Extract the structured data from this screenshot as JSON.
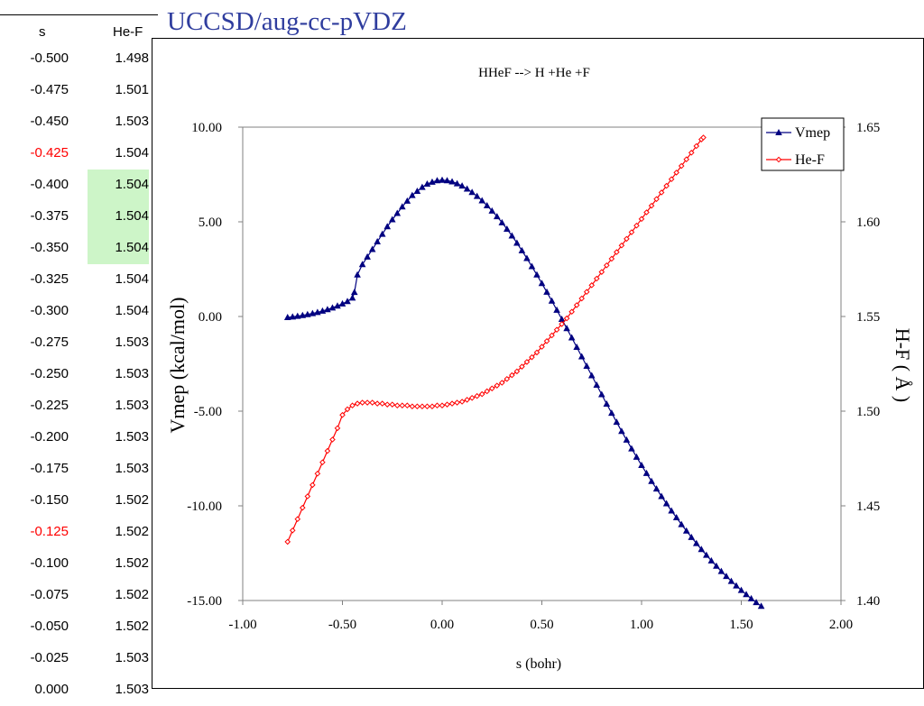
{
  "slide_title": "UCCSD/aug-cc-pVDZ",
  "table": {
    "headers": [
      "s",
      "He-F"
    ],
    "rows": [
      {
        "s": "-0.500",
        "v": "1.498",
        "s_color": "#000000",
        "highlight": false
      },
      {
        "s": "-0.475",
        "v": "1.501",
        "s_color": "#000000",
        "highlight": false
      },
      {
        "s": "-0.450",
        "v": "1.503",
        "s_color": "#000000",
        "highlight": false
      },
      {
        "s": "-0.425",
        "v": "1.504",
        "s_color": "#ff0000",
        "highlight": false
      },
      {
        "s": "-0.400",
        "v": "1.504",
        "s_color": "#000000",
        "highlight": true
      },
      {
        "s": "-0.375",
        "v": "1.504",
        "s_color": "#000000",
        "highlight": true
      },
      {
        "s": "-0.350",
        "v": "1.504",
        "s_color": "#000000",
        "highlight": true
      },
      {
        "s": "-0.325",
        "v": "1.504",
        "s_color": "#000000",
        "highlight": false
      },
      {
        "s": "-0.300",
        "v": "1.504",
        "s_color": "#000000",
        "highlight": false
      },
      {
        "s": "-0.275",
        "v": "1.503",
        "s_color": "#000000",
        "highlight": false
      },
      {
        "s": "-0.250",
        "v": "1.503",
        "s_color": "#000000",
        "highlight": false
      },
      {
        "s": "-0.225",
        "v": "1.503",
        "s_color": "#000000",
        "highlight": false
      },
      {
        "s": "-0.200",
        "v": "1.503",
        "s_color": "#000000",
        "highlight": false
      },
      {
        "s": "-0.175",
        "v": "1.503",
        "s_color": "#000000",
        "highlight": false
      },
      {
        "s": "-0.150",
        "v": "1.502",
        "s_color": "#000000",
        "highlight": false
      },
      {
        "s": "-0.125",
        "v": "1.502",
        "s_color": "#ff0000",
        "highlight": false
      },
      {
        "s": "-0.100",
        "v": "1.502",
        "s_color": "#000000",
        "highlight": false
      },
      {
        "s": "-0.075",
        "v": "1.502",
        "s_color": "#000000",
        "highlight": false
      },
      {
        "s": "-0.050",
        "v": "1.502",
        "s_color": "#000000",
        "highlight": false
      },
      {
        "s": "-0.025",
        "v": "1.503",
        "s_color": "#000000",
        "highlight": false
      },
      {
        "s": "0.000",
        "v": "1.503",
        "s_color": "#000000",
        "highlight": false
      }
    ]
  },
  "chart_data": {
    "type": "line",
    "title": "HHeF --> H +He +F",
    "xlabel": "s (bohr)",
    "ylabel": "Vmep (kcal/mol)",
    "y2label": "H-F ( Å )",
    "xlim": [
      -1.0,
      2.0
    ],
    "ylim": [
      -15.0,
      10.0
    ],
    "y2lim": [
      1.4,
      1.65
    ],
    "xticks": [
      "-1.00",
      "-0.50",
      "0.00",
      "0.50",
      "1.00",
      "1.50",
      "2.00"
    ],
    "yticks": [
      "-15.00",
      "-10.00",
      "-5.00",
      "0.00",
      "5.00",
      "10.00"
    ],
    "y2ticks": [
      "1.40",
      "1.45",
      "1.50",
      "1.55",
      "1.60",
      "1.65"
    ],
    "grid": false,
    "legend_position": "top-right",
    "series": [
      {
        "name": "Vmep",
        "axis": "left",
        "color": "#000080",
        "marker": "triangle",
        "points": [
          [
            -0.775,
            -0.05
          ],
          [
            -0.75,
            -0.02
          ],
          [
            -0.725,
            0.02
          ],
          [
            -0.7,
            0.06
          ],
          [
            -0.675,
            0.11
          ],
          [
            -0.65,
            0.16
          ],
          [
            -0.625,
            0.22
          ],
          [
            -0.6,
            0.29
          ],
          [
            -0.575,
            0.37
          ],
          [
            -0.55,
            0.46
          ],
          [
            -0.525,
            0.56
          ],
          [
            -0.5,
            0.67
          ],
          [
            -0.475,
            0.8
          ],
          [
            -0.45,
            0.98
          ],
          [
            -0.44,
            1.28
          ],
          [
            -0.425,
            2.2
          ],
          [
            -0.4,
            2.75
          ],
          [
            -0.375,
            3.15
          ],
          [
            -0.35,
            3.55
          ],
          [
            -0.325,
            3.95
          ],
          [
            -0.3,
            4.35
          ],
          [
            -0.275,
            4.75
          ],
          [
            -0.25,
            5.12
          ],
          [
            -0.225,
            5.45
          ],
          [
            -0.2,
            5.8
          ],
          [
            -0.175,
            6.1
          ],
          [
            -0.15,
            6.4
          ],
          [
            -0.125,
            6.62
          ],
          [
            -0.1,
            6.83
          ],
          [
            -0.075,
            7.0
          ],
          [
            -0.05,
            7.1
          ],
          [
            -0.025,
            7.18
          ],
          [
            0.0,
            7.2
          ],
          [
            0.025,
            7.18
          ],
          [
            0.05,
            7.12
          ],
          [
            0.075,
            7.02
          ],
          [
            0.1,
            6.9
          ],
          [
            0.125,
            6.74
          ],
          [
            0.15,
            6.56
          ],
          [
            0.175,
            6.35
          ],
          [
            0.2,
            6.12
          ],
          [
            0.225,
            5.86
          ],
          [
            0.25,
            5.58
          ],
          [
            0.275,
            5.28
          ],
          [
            0.3,
            4.96
          ],
          [
            0.325,
            4.62
          ],
          [
            0.35,
            4.26
          ],
          [
            0.375,
            3.88
          ],
          [
            0.4,
            3.48
          ],
          [
            0.425,
            3.07
          ],
          [
            0.45,
            2.64
          ],
          [
            0.475,
            2.2
          ],
          [
            0.5,
            1.75
          ],
          [
            0.525,
            1.29
          ],
          [
            0.55,
            0.82
          ],
          [
            0.575,
            0.34
          ],
          [
            0.6,
            -0.14
          ],
          [
            0.625,
            -0.63
          ],
          [
            0.65,
            -1.12
          ],
          [
            0.675,
            -1.62
          ],
          [
            0.7,
            -2.12
          ],
          [
            0.725,
            -2.62
          ],
          [
            0.75,
            -3.12
          ],
          [
            0.775,
            -3.62
          ],
          [
            0.8,
            -4.12
          ],
          [
            0.825,
            -4.62
          ],
          [
            0.85,
            -5.1
          ],
          [
            0.875,
            -5.58
          ],
          [
            0.9,
            -6.06
          ],
          [
            0.925,
            -6.52
          ],
          [
            0.95,
            -6.98
          ],
          [
            0.975,
            -7.42
          ],
          [
            1.0,
            -7.86
          ],
          [
            1.025,
            -8.28
          ],
          [
            1.05,
            -8.7
          ],
          [
            1.075,
            -9.1
          ],
          [
            1.1,
            -9.5
          ],
          [
            1.125,
            -9.88
          ],
          [
            1.15,
            -10.26
          ],
          [
            1.175,
            -10.62
          ],
          [
            1.2,
            -10.98
          ],
          [
            1.225,
            -11.32
          ],
          [
            1.25,
            -11.66
          ],
          [
            1.275,
            -11.98
          ],
          [
            1.3,
            -12.3
          ],
          [
            1.325,
            -12.6
          ],
          [
            1.35,
            -12.9
          ],
          [
            1.375,
            -13.18
          ],
          [
            1.4,
            -13.46
          ],
          [
            1.425,
            -13.72
          ],
          [
            1.45,
            -13.98
          ],
          [
            1.475,
            -14.22
          ],
          [
            1.5,
            -14.46
          ],
          [
            1.525,
            -14.68
          ],
          [
            1.55,
            -14.9
          ],
          [
            1.575,
            -15.1
          ],
          [
            1.6,
            -15.3
          ]
        ]
      },
      {
        "name": "He-F",
        "axis": "right",
        "color": "#ff0000",
        "marker": "diamond",
        "points": [
          [
            -0.775,
            1.431
          ],
          [
            -0.75,
            1.437
          ],
          [
            -0.725,
            1.443
          ],
          [
            -0.7,
            1.449
          ],
          [
            -0.675,
            1.455
          ],
          [
            -0.65,
            1.461
          ],
          [
            -0.625,
            1.467
          ],
          [
            -0.6,
            1.473
          ],
          [
            -0.575,
            1.479
          ],
          [
            -0.55,
            1.485
          ],
          [
            -0.525,
            1.491
          ],
          [
            -0.5,
            1.498
          ],
          [
            -0.475,
            1.501
          ],
          [
            -0.45,
            1.503
          ],
          [
            -0.425,
            1.504
          ],
          [
            -0.4,
            1.5045
          ],
          [
            -0.375,
            1.5045
          ],
          [
            -0.35,
            1.5045
          ],
          [
            -0.325,
            1.504
          ],
          [
            -0.3,
            1.504
          ],
          [
            -0.275,
            1.5035
          ],
          [
            -0.25,
            1.5035
          ],
          [
            -0.225,
            1.503
          ],
          [
            -0.2,
            1.503
          ],
          [
            -0.175,
            1.503
          ],
          [
            -0.15,
            1.5025
          ],
          [
            -0.125,
            1.5025
          ],
          [
            -0.1,
            1.5025
          ],
          [
            -0.075,
            1.5025
          ],
          [
            -0.05,
            1.5025
          ],
          [
            -0.025,
            1.503
          ],
          [
            0.0,
            1.503
          ],
          [
            0.025,
            1.5035
          ],
          [
            0.05,
            1.504
          ],
          [
            0.075,
            1.5045
          ],
          [
            0.1,
            1.505
          ],
          [
            0.125,
            1.506
          ],
          [
            0.15,
            1.507
          ],
          [
            0.175,
            1.508
          ],
          [
            0.2,
            1.509
          ],
          [
            0.225,
            1.5105
          ],
          [
            0.25,
            1.512
          ],
          [
            0.275,
            1.5135
          ],
          [
            0.3,
            1.515
          ],
          [
            0.325,
            1.517
          ],
          [
            0.35,
            1.519
          ],
          [
            0.375,
            1.521
          ],
          [
            0.4,
            1.5235
          ],
          [
            0.425,
            1.526
          ],
          [
            0.45,
            1.5285
          ],
          [
            0.475,
            1.531
          ],
          [
            0.5,
            1.534
          ],
          [
            0.525,
            1.537
          ],
          [
            0.55,
            1.54
          ],
          [
            0.575,
            1.543
          ],
          [
            0.6,
            1.546
          ],
          [
            0.625,
            1.549
          ],
          [
            0.65,
            1.5525
          ],
          [
            0.675,
            1.556
          ],
          [
            0.7,
            1.5595
          ],
          [
            0.725,
            1.563
          ],
          [
            0.75,
            1.5665
          ],
          [
            0.775,
            1.57
          ],
          [
            0.8,
            1.5735
          ],
          [
            0.825,
            1.577
          ],
          [
            0.85,
            1.5805
          ],
          [
            0.875,
            1.584
          ],
          [
            0.9,
            1.5875
          ],
          [
            0.925,
            1.591
          ],
          [
            0.95,
            1.5945
          ],
          [
            0.975,
            1.598
          ],
          [
            1.0,
            1.6015
          ],
          [
            1.025,
            1.605
          ],
          [
            1.05,
            1.6085
          ],
          [
            1.075,
            1.612
          ],
          [
            1.1,
            1.6155
          ],
          [
            1.125,
            1.619
          ],
          [
            1.15,
            1.6225
          ],
          [
            1.175,
            1.626
          ],
          [
            1.2,
            1.6295
          ],
          [
            1.225,
            1.633
          ],
          [
            1.25,
            1.6365
          ],
          [
            1.275,
            1.64
          ],
          [
            1.3,
            1.6435
          ],
          [
            1.31,
            1.6445
          ]
        ]
      }
    ]
  }
}
